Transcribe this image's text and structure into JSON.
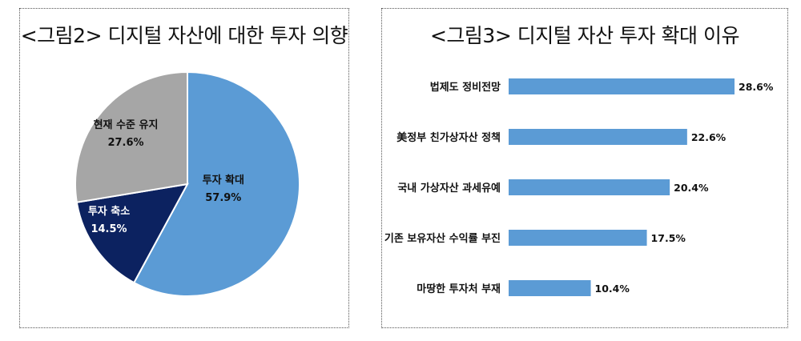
{
  "chart_data": [
    {
      "type": "pie",
      "title": "<그림2> 디지털 자산에 대한 투자 의향",
      "slices": [
        {
          "label": "투자 확대",
          "value": 57.9,
          "value_text": "57.9%",
          "color": "#5b9bd5"
        },
        {
          "label": "투자 축소",
          "value": 14.5,
          "value_text": "14.5%",
          "color": "#0c2260"
        },
        {
          "label": "현재 수준 유지",
          "value": 27.6,
          "value_text": "27.6%",
          "color": "#a6a6a6"
        }
      ]
    },
    {
      "type": "bar",
      "orientation": "horizontal",
      "title": "<그림3> 디지털 자산 투자 확대 이유",
      "categories": [
        "법제도 정비전망",
        "美정부 친가상자산 정책",
        "국내 가상자산 과세유예",
        "기존 보유자산 수익률 부진",
        "마땅한 투자처 부재"
      ],
      "values": [
        28.6,
        22.6,
        20.4,
        17.5,
        10.4
      ],
      "value_labels": [
        "28.6%",
        "22.6%",
        "20.4%",
        "17.5%",
        "10.4%"
      ],
      "color": "#5b9bd5"
    }
  ]
}
